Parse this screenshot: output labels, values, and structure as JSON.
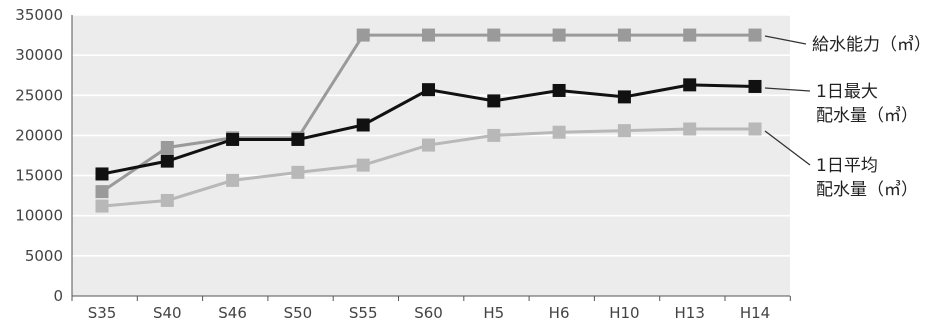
{
  "chart_data": {
    "type": "line",
    "categories": [
      "S35",
      "S40",
      "S46",
      "S50",
      "S55",
      "S60",
      "H5",
      "H6",
      "H10",
      "H13",
      "H14"
    ],
    "ylim": [
      0,
      35000
    ],
    "yticks": [
      0,
      5000,
      10000,
      15000,
      20000,
      25000,
      30000,
      35000
    ],
    "grid": true,
    "series": [
      {
        "name": "給水能力（㎥）",
        "label_lines": [
          "給水能力（㎥）"
        ],
        "color": "#9a9a9a",
        "values": [
          13000,
          18500,
          19700,
          19700,
          32500,
          32500,
          32500,
          32500,
          32500,
          32500,
          32500
        ]
      },
      {
        "name": "1日最大配水量（㎥）",
        "label_lines": [
          "1日最大",
          "配水量（㎥）"
        ],
        "color": "#111111",
        "values": [
          15200,
          16800,
          19500,
          19500,
          21300,
          25700,
          24300,
          25600,
          24800,
          26300,
          26100
        ]
      },
      {
        "name": "1日平均配水量（㎥）",
        "label_lines": [
          "1日平均",
          "配水量（㎥）"
        ],
        "color": "#b8b8b8",
        "values": [
          11200,
          11900,
          14400,
          15400,
          16300,
          18800,
          20000,
          20400,
          20600,
          20800,
          20800
        ]
      }
    ]
  }
}
